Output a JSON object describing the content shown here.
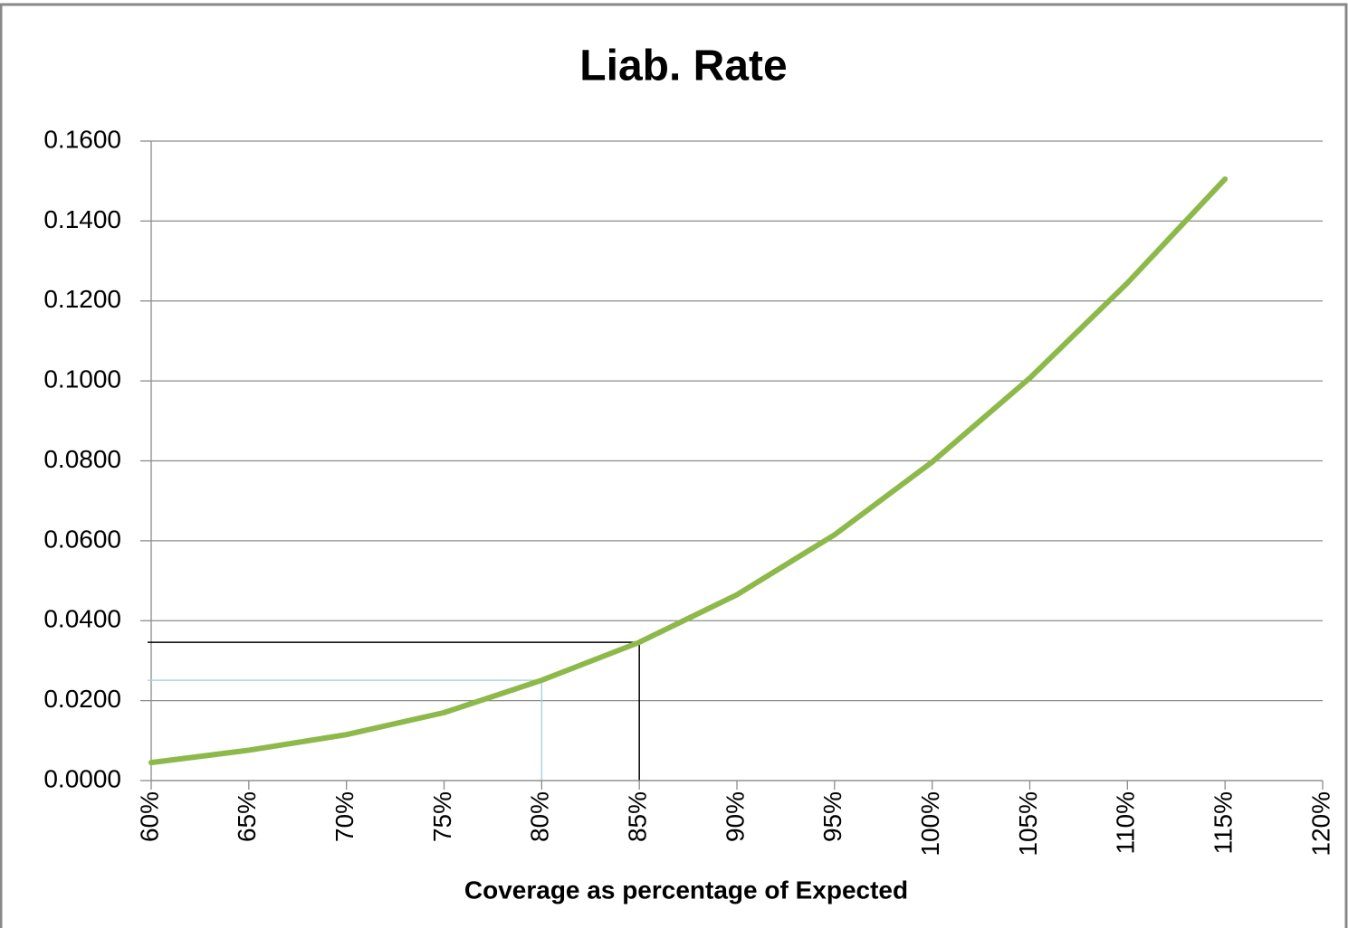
{
  "chart_data": {
    "type": "line",
    "title": "Liab. Rate",
    "x_label": "Coverage as percentage of Expected",
    "x": [
      60,
      65,
      70,
      75,
      80,
      85,
      90,
      95,
      100,
      105,
      110,
      115
    ],
    "series": [
      {
        "name": "Liab. Rate",
        "color": "#8db94a",
        "values": [
          0.0045,
          0.0076,
          0.0115,
          0.017,
          0.0251,
          0.0346,
          0.0465,
          0.0615,
          0.0797,
          0.1007,
          0.1245,
          0.1505
        ]
      }
    ],
    "xlim": [
      60,
      120
    ],
    "xticks": [
      {
        "value": 60,
        "label": "60%"
      },
      {
        "value": 65,
        "label": "65%"
      },
      {
        "value": 70,
        "label": "70%"
      },
      {
        "value": 75,
        "label": "75%"
      },
      {
        "value": 80,
        "label": "80%"
      },
      {
        "value": 85,
        "label": "85%"
      },
      {
        "value": 90,
        "label": "90%"
      },
      {
        "value": 95,
        "label": "95%"
      },
      {
        "value": 100,
        "label": "100%"
      },
      {
        "value": 105,
        "label": "105%"
      },
      {
        "value": 110,
        "label": "110%"
      },
      {
        "value": 115,
        "label": "115%"
      },
      {
        "value": 120,
        "label": "120%"
      }
    ],
    "ylim": [
      0,
      0.16
    ],
    "yticks": [
      {
        "value": 0,
        "label": "0.0000"
      },
      {
        "value": 0.02,
        "label": "0.0200"
      },
      {
        "value": 0.04,
        "label": "0.0400"
      },
      {
        "value": 0.06,
        "label": "0.0600"
      },
      {
        "value": 0.08,
        "label": "0.0800"
      },
      {
        "value": 0.1,
        "label": "0.1000"
      },
      {
        "value": 0.12,
        "label": "0.1200"
      },
      {
        "value": 0.14,
        "label": "0.1400"
      },
      {
        "value": 0.16,
        "label": "0.1600"
      }
    ],
    "grid": true,
    "reference_lines": [
      {
        "x": 85,
        "y": 0.0346,
        "color": "#000000"
      },
      {
        "x": 80,
        "y": 0.0251,
        "color": "#a9d3e0"
      }
    ]
  }
}
